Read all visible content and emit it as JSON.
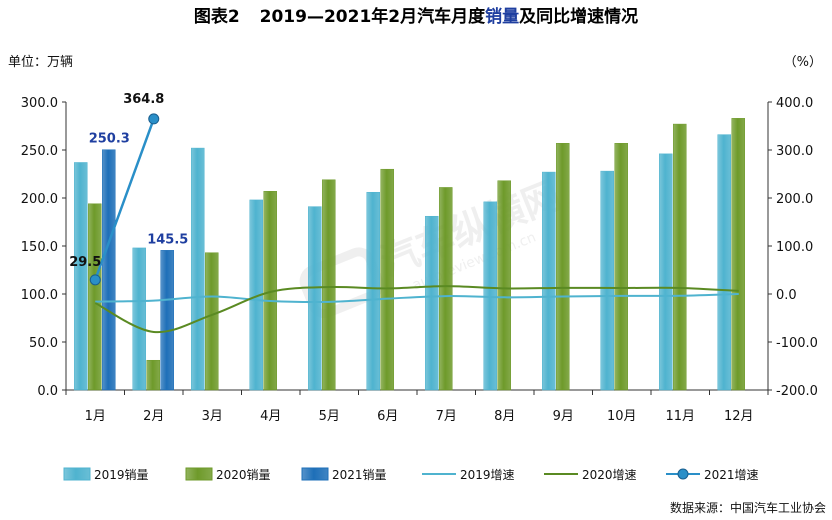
{
  "chart_data": {
    "type": "bar",
    "title": "图表2 2019—2021年2月汽车月度销量及同比增速情况",
    "title_prefix": "图表2",
    "title_a": "2019—2021年2月汽车月度",
    "title_b": "销量",
    "title_c": "及同比增速情况",
    "left_unit": "单位：万辆",
    "right_unit": "（%）",
    "source": "数据来源：中国汽车工业协会",
    "categories": [
      "1月",
      "2月",
      "3月",
      "4月",
      "5月",
      "6月",
      "7月",
      "8月",
      "9月",
      "10月",
      "11月",
      "12月"
    ],
    "ylim_left": [
      0,
      300
    ],
    "yticks_left": [
      "0.0",
      "50.0",
      "100.0",
      "150.0",
      "200.0",
      "250.0",
      "300.0"
    ],
    "ylim_right": [
      -200,
      400
    ],
    "yticks_right": [
      "-200.0",
      "-100.0",
      "0.0",
      "100.0",
      "200.0",
      "300.0",
      "400.0"
    ],
    "bar_series": [
      {
        "name": "2019销量",
        "color": "#4fb3cf",
        "values": [
          237,
          148,
          252,
          198,
          191,
          206,
          181,
          196,
          227,
          228,
          246,
          266
        ]
      },
      {
        "name": "2020销量",
        "color": "#6e9a2a",
        "values": [
          194,
          31,
          143,
          207,
          219,
          230,
          211,
          218,
          257,
          257,
          277,
          283
        ]
      },
      {
        "name": "2021销量",
        "color": "#1e6fb8",
        "values": [
          250.3,
          145.5
        ]
      }
    ],
    "line_series": [
      {
        "name": "2019增速",
        "color": "#4fb3cf",
        "values": [
          -15.8,
          -13.8,
          -5.2,
          -14.6,
          -16.4,
          -9.7,
          -4.3,
          -6.9,
          -5.2,
          -4.0,
          -3.6,
          0.1
        ]
      },
      {
        "name": "2020增速",
        "color": "#5a8a22",
        "values": [
          -18.7,
          -79.1,
          -43.3,
          4.4,
          14.5,
          11.6,
          16.4,
          11.6,
          12.8,
          12.5,
          12.6,
          6.4
        ]
      },
      {
        "name": "2021增速",
        "color": "#2a8fc8",
        "values": [
          29.5,
          364.8
        ]
      }
    ],
    "data_labels": [
      {
        "text": "250.3",
        "color": "#1f3fa0"
      },
      {
        "text": "145.5",
        "color": "#1f3fa0"
      },
      {
        "text": "29.5",
        "color": "#111111"
      },
      {
        "text": "364.8",
        "color": "#111111"
      }
    ],
    "legend_position": "bottom",
    "grid": false
  },
  "watermark": "汽车纵横网 autoreview.com.cn"
}
